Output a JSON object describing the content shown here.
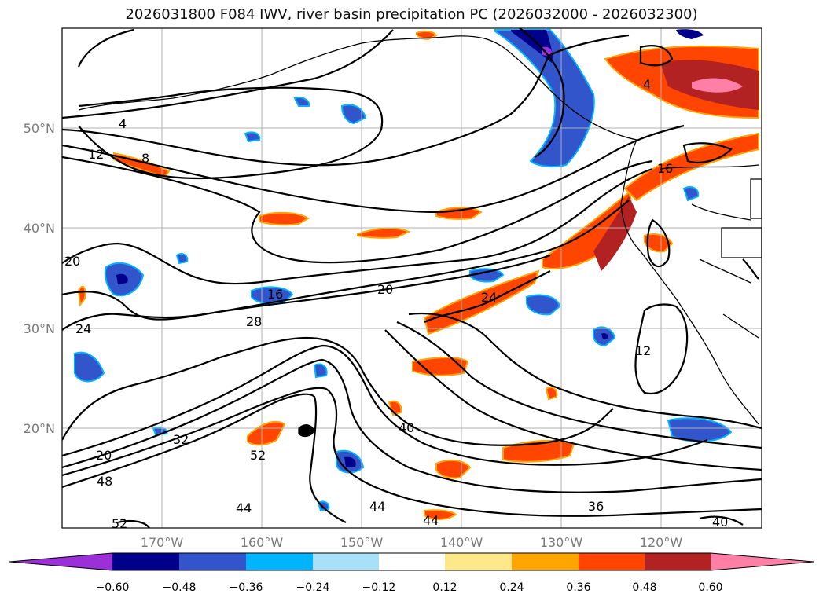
{
  "title": "2026031800 F084 IWV, river basin precipitation PC (2026032000 - 2026032300)",
  "axes": {
    "x_ticks": [
      "170°W",
      "160°W",
      "150°W",
      "140°W",
      "130°W",
      "120°W"
    ],
    "y_ticks": [
      "50°N",
      "40°N",
      "30°N",
      "20°N"
    ]
  },
  "contour_labels": [
    "4",
    "12",
    "8",
    "20",
    "24",
    "16",
    "28",
    "20",
    "24",
    "12",
    "32",
    "52",
    "20",
    "48",
    "44",
    "44",
    "40",
    "44",
    "36",
    "40",
    "52",
    "4",
    "16"
  ],
  "colorbar": {
    "ticks": [
      "−0.60",
      "−0.48",
      "−0.36",
      "−0.24",
      "−0.12",
      "0.12",
      "0.24",
      "0.36",
      "0.48",
      "0.60"
    ],
    "colors": {
      "neg_extend": "#9b30d9",
      "neg_060": "#00008b",
      "neg_048": "#3355cc",
      "neg_036": "#00b4ff",
      "neg_024": "#a8e0fa",
      "neutral": "#ffffff",
      "pos_012": "#ffe88a",
      "pos_024": "#ffa500",
      "pos_036": "#ff4500",
      "pos_048": "#b22222",
      "pos_extend": "#ff7fa6"
    }
  }
}
